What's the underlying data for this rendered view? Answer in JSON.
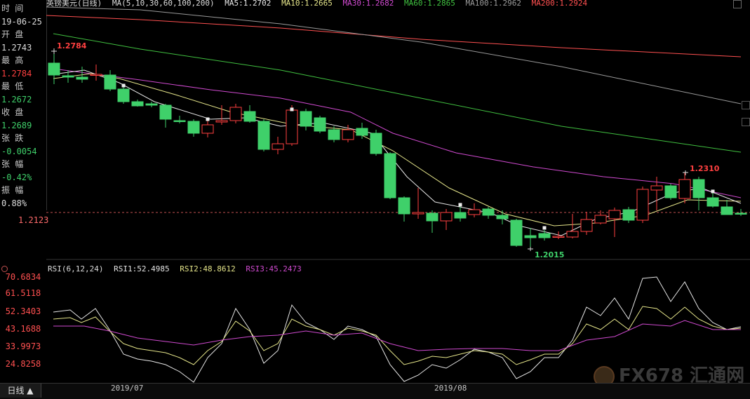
{
  "header": {
    "title": "英镑美元(日线)",
    "ma_params": "MA(5,10,30,60,100,200)",
    "ma5": "MA5:1.2702",
    "ma10": "MA10:1.2665",
    "ma30": "MA30:1.2682",
    "ma60": "MA60:1.2865",
    "ma100": "MA100:1.2962",
    "ma200": "MA200:1.2924"
  },
  "info": {
    "time_label": "时 间",
    "time_value": "19-06-25",
    "open_label": "开 盘",
    "open_value": "1.2743",
    "high_label": "最 高",
    "high_value": "1.2784",
    "low_label": "最 低",
    "low_value": "1.2672",
    "close_label": "收 盘",
    "close_value": "1.2689",
    "change_label": "张 跌",
    "change_value": "-0.0054",
    "pct_label": "张 幅",
    "pct_value": "-0.42%",
    "amp_label": "振 幅",
    "amp_value": "0.88%"
  },
  "current_price_label": "1.2123",
  "annotations": {
    "high_mark": "1.2784",
    "low_mark": "1.2015",
    "recent_high_mark": "1.2310"
  },
  "rsi": {
    "params": "RSI(6,12,24)",
    "rsi1": "RSI1:52.4985",
    "rsi2": "RSI2:48.8612",
    "rsi3": "RSI3:45.2473",
    "axis_labels": [
      "70.6834",
      "61.5118",
      "52.3403",
      "43.1688",
      "33.9973",
      "24.8258"
    ]
  },
  "bottom": {
    "period_button": "日线 ▲",
    "date_labels": [
      "2019/07",
      "2019/08"
    ]
  },
  "watermark": "FX678 汇通网",
  "colors": {
    "up": "#ff4040",
    "down": "#3fd06a",
    "ma5": "#e6e6e6",
    "ma10": "#e5e58a",
    "ma30": "#d04ad0",
    "ma60": "#40c040",
    "ma100": "#9a9a9a",
    "ma200": "#ff5050"
  }
}
